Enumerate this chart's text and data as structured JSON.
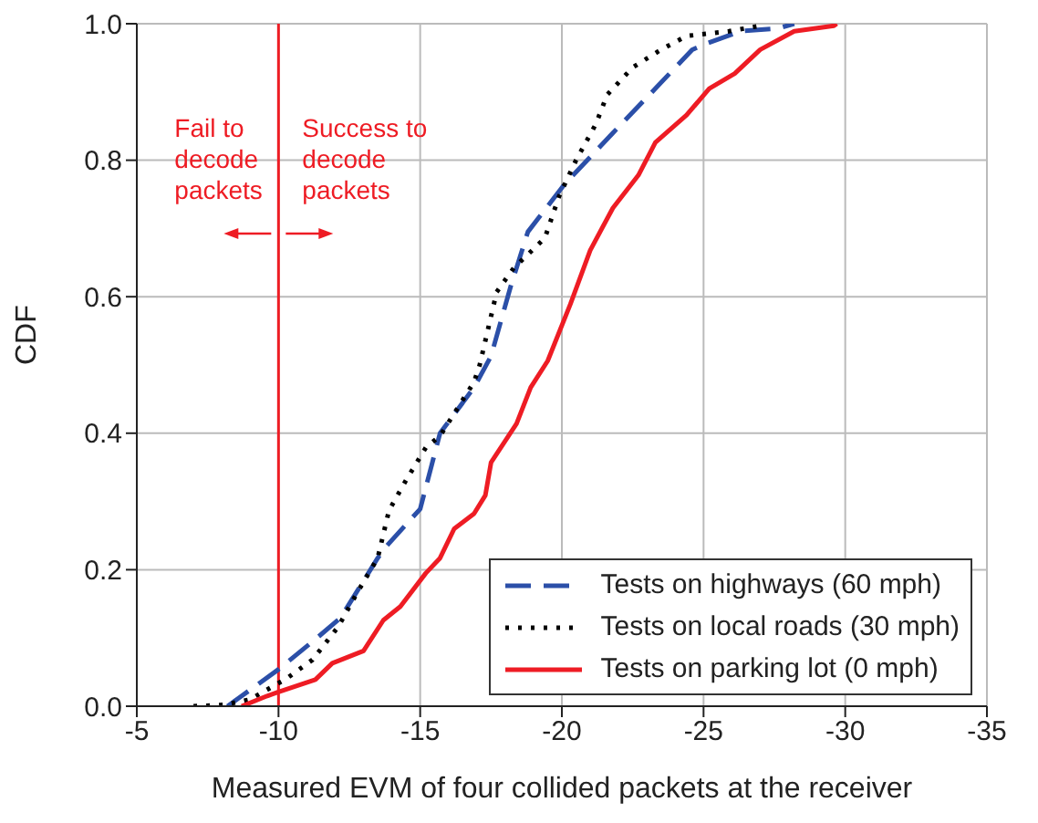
{
  "chart_data": {
    "type": "line",
    "xlabel": "Measured EVM of four collided packets at the receiver",
    "ylabel": "CDF",
    "xlim": [
      -5,
      -35
    ],
    "xticks": [
      -5,
      -10,
      -15,
      -20,
      -25,
      -30,
      -35
    ],
    "ylim": [
      0,
      1
    ],
    "yticks": [
      {
        "value": 0,
        "label": "0.0"
      },
      {
        "value": 0.2,
        "label": "0.2"
      },
      {
        "value": 0.4,
        "label": "0.4"
      },
      {
        "value": 0.6,
        "label": "0.6"
      },
      {
        "value": 0.8,
        "label": "0.8"
      },
      {
        "value": 1,
        "label": "1.0"
      }
    ],
    "grid": true,
    "legend": "bottom right",
    "marker": "none",
    "ref_lines": [
      {
        "axis": "x",
        "value": -10,
        "color": "#ee1c24",
        "line_style": "solid"
      }
    ],
    "annotations": [
      "Fail to decode packets",
      "Success to decode packets"
    ],
    "series": [
      {
        "name": "Tests on highways (60 mph)",
        "color": "#2b4fa8",
        "line_style": "dashed",
        "x": [
          -8.2,
          -8.6,
          -10.0,
          -11.3,
          -12.2,
          -13.5,
          -13.8,
          -15.0,
          -15.7,
          -16.9,
          -17.5,
          -18.2,
          -18.8,
          -20.1,
          -21.8,
          -23.3,
          -24.6,
          -25.1,
          -26.3,
          -27.6,
          -28.2
        ],
        "values": [
          0,
          0.012,
          0.054,
          0.098,
          0.13,
          0.217,
          0.234,
          0.289,
          0.4,
          0.467,
          0.513,
          0.616,
          0.695,
          0.765,
          0.84,
          0.905,
          0.962,
          0.971,
          0.989,
          0.993,
          1.0
        ]
      },
      {
        "name": "Tests on local roads (30 mph)",
        "color": "#000000",
        "line_style": "dotted",
        "x": [
          -7.0,
          -8.1,
          -9.0,
          -10.3,
          -11.2,
          -12.1,
          -12.8,
          -13.5,
          -13.9,
          -14.5,
          -15.2,
          -15.7,
          -16.9,
          -17.1,
          -17.7,
          -18.3,
          -19.4,
          -19.9,
          -20.5,
          -21.2,
          -21.6,
          -22.5,
          -23.5,
          -24.4,
          -25.9,
          -27.0
        ],
        "values": [
          0,
          0.002,
          0.01,
          0.041,
          0.068,
          0.116,
          0.168,
          0.217,
          0.287,
          0.331,
          0.379,
          0.396,
          0.475,
          0.5,
          0.607,
          0.642,
          0.686,
          0.747,
          0.8,
          0.853,
          0.896,
          0.936,
          0.962,
          0.982,
          0.989,
          0.997
        ]
      },
      {
        "name": "Tests on parking lot (0 mph)",
        "color": "#ee1c24",
        "line_style": "solid",
        "x": [
          -8.7,
          -9.6,
          -10.0,
          -11.3,
          -11.9,
          -13.0,
          -13.7,
          -14.3,
          -15.2,
          -15.7,
          -16.2,
          -16.9,
          -17.3,
          -17.5,
          -18.4,
          -18.9,
          -19.5,
          -20.3,
          -21.0,
          -21.8,
          -22.7,
          -23.3,
          -24.4,
          -25.2,
          -26.1,
          -27.0,
          -28.2,
          -29.6,
          -29.7
        ],
        "values": [
          0,
          0.015,
          0.021,
          0.039,
          0.063,
          0.081,
          0.126,
          0.146,
          0.195,
          0.217,
          0.26,
          0.282,
          0.309,
          0.357,
          0.414,
          0.467,
          0.506,
          0.589,
          0.668,
          0.73,
          0.778,
          0.826,
          0.866,
          0.905,
          0.927,
          0.962,
          0.989,
          0.997,
          1.0
        ]
      }
    ]
  }
}
